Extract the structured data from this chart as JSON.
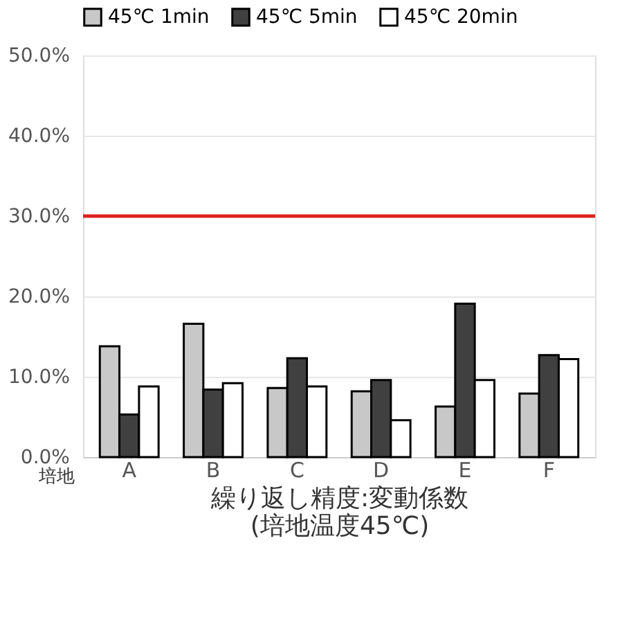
{
  "chart_data": {
    "type": "bar",
    "categories": [
      "A",
      "B",
      "C",
      "D",
      "E",
      "F"
    ],
    "series": [
      {
        "name": "45℃ 1min",
        "color": "#c8c8c8",
        "values": [
          13.8,
          16.6,
          8.6,
          8.2,
          6.3,
          7.9
        ]
      },
      {
        "name": "45℃ 5min",
        "color": "#404040",
        "values": [
          5.3,
          8.4,
          12.3,
          9.6,
          19.1,
          12.7
        ]
      },
      {
        "name": "45℃ 20min",
        "color": "#ffffff",
        "values": [
          8.8,
          9.2,
          8.8,
          4.6,
          9.6,
          12.2
        ]
      }
    ],
    "xlabel": "繰り返し精度:変動係数\n(培地温度45℃)",
    "annotations": [
      "培地"
    ],
    "ylim": [
      0,
      50
    ],
    "yticks": [
      {
        "value": 0,
        "label": "0.0%"
      },
      {
        "value": 10,
        "label": "10.0%"
      },
      {
        "value": 20,
        "label": "20.0%"
      },
      {
        "value": 30,
        "label": "30.0%"
      },
      {
        "value": 40,
        "label": "40.0%"
      },
      {
        "value": 50,
        "label": "50.0%"
      }
    ],
    "ref_lines": [
      {
        "axis": "y",
        "value": 30,
        "color": "#e02020"
      }
    ],
    "grid": "y",
    "legend": "top"
  }
}
